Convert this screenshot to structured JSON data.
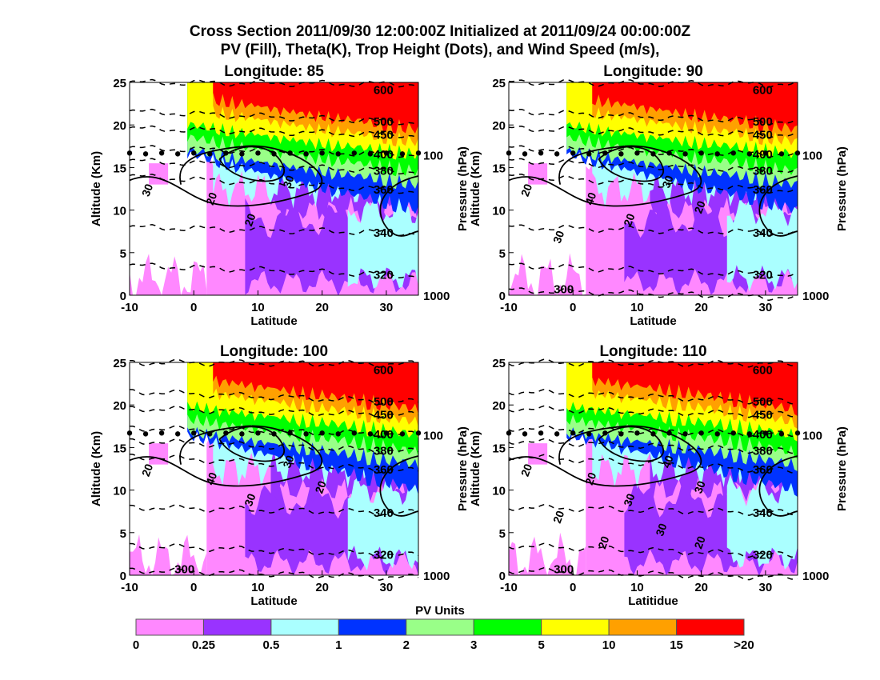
{
  "title_line1": "Cross Section 2011/09/30 12:00:00Z Initialized at 2011/09/24 00:00:00Z",
  "title_line2": "PV (Fill), Theta(K), Trop Height (Dots), and Wind Speed (m/s),",
  "chart_data": [
    {
      "type": "heatmap",
      "title": "Longitude:   85",
      "xlabel": "Latitude",
      "ylabel": "Altitude (Km)",
      "y2label": "Pressure (hPa)",
      "xlim": [
        -10,
        35
      ],
      "ylim": [
        0,
        25
      ],
      "xticks": [
        "-10",
        "0",
        "10",
        "20",
        "30"
      ],
      "yticks": [
        "0",
        "5",
        "10",
        "15",
        "20",
        "25"
      ],
      "y2ticks": [
        "1000",
        "100"
      ],
      "theta_labels": [
        "600",
        "500",
        "450",
        "400",
        "380",
        "360",
        "340",
        "320"
      ],
      "wind_labels": [
        "30",
        "20",
        "30",
        "20"
      ],
      "tropopause_km": 16.7
    },
    {
      "type": "heatmap",
      "title": "Longitude:   90",
      "xlabel": "Latitude",
      "ylabel": "Altitude (Km)",
      "y2label": "Pressure (hPa)",
      "xlim": [
        -10,
        35
      ],
      "ylim": [
        0,
        25
      ],
      "xticks": [
        "-10",
        "0",
        "10",
        "20",
        "30"
      ],
      "yticks": [
        "0",
        "5",
        "10",
        "15",
        "20",
        "25"
      ],
      "y2ticks": [
        "1000",
        "100"
      ],
      "theta_labels": [
        "600",
        "500",
        "450",
        "400",
        "380",
        "360",
        "340",
        "320",
        "300"
      ],
      "wind_labels": [
        "20",
        "40",
        "30",
        "20",
        "20",
        "30"
      ],
      "tropopause_km": 16.7
    },
    {
      "type": "heatmap",
      "title": "Longitude:  100",
      "xlabel": "Latitude",
      "ylabel": "Altitude (Km)",
      "y2label": "Pressure (hPa)",
      "xlim": [
        -10,
        35
      ],
      "ylim": [
        0,
        25
      ],
      "xticks": [
        "-10",
        "0",
        "10",
        "20",
        "30"
      ],
      "yticks": [
        "0",
        "5",
        "10",
        "15",
        "20",
        "25"
      ],
      "y2ticks": [
        "1000",
        "100"
      ],
      "theta_labels": [
        "600",
        "500",
        "450",
        "400",
        "380",
        "360",
        "340",
        "320",
        "300"
      ],
      "wind_labels": [
        "20",
        "40",
        "30",
        "30",
        "20"
      ],
      "tropopause_km": 16.7
    },
    {
      "type": "heatmap",
      "title": "Longitude:  110",
      "xlabel": "Latitidue",
      "ylabel": "Altitude (Km)",
      "y2label": "Pressure (hPa)",
      "xlim": [
        -10,
        35
      ],
      "ylim": [
        0,
        25
      ],
      "xticks": [
        "-10",
        "0",
        "10",
        "20",
        "30"
      ],
      "yticks": [
        "0",
        "5",
        "10",
        "15",
        "20",
        "25"
      ],
      "y2ticks": [
        "1000",
        "100"
      ],
      "theta_labels": [
        "600",
        "500",
        "450",
        "400",
        "380",
        "360",
        "340",
        "320",
        "300"
      ],
      "wind_labels": [
        "20",
        "20",
        "40",
        "30",
        "30",
        "20",
        "30",
        "20",
        "20"
      ],
      "tropopause_km": 16.7
    }
  ],
  "colorbar": {
    "label": "PV Units",
    "ticks": [
      "0",
      "0.25",
      "0.5",
      "1",
      "2",
      "3",
      "5",
      "10",
      "15",
      ">20"
    ],
    "colors": [
      "#ff88ff",
      "#9933ff",
      "#aaffff",
      "#0033ff",
      "#99ff88",
      "#00ff00",
      "#ffff00",
      "#ffa000",
      "#ff0000"
    ]
  }
}
